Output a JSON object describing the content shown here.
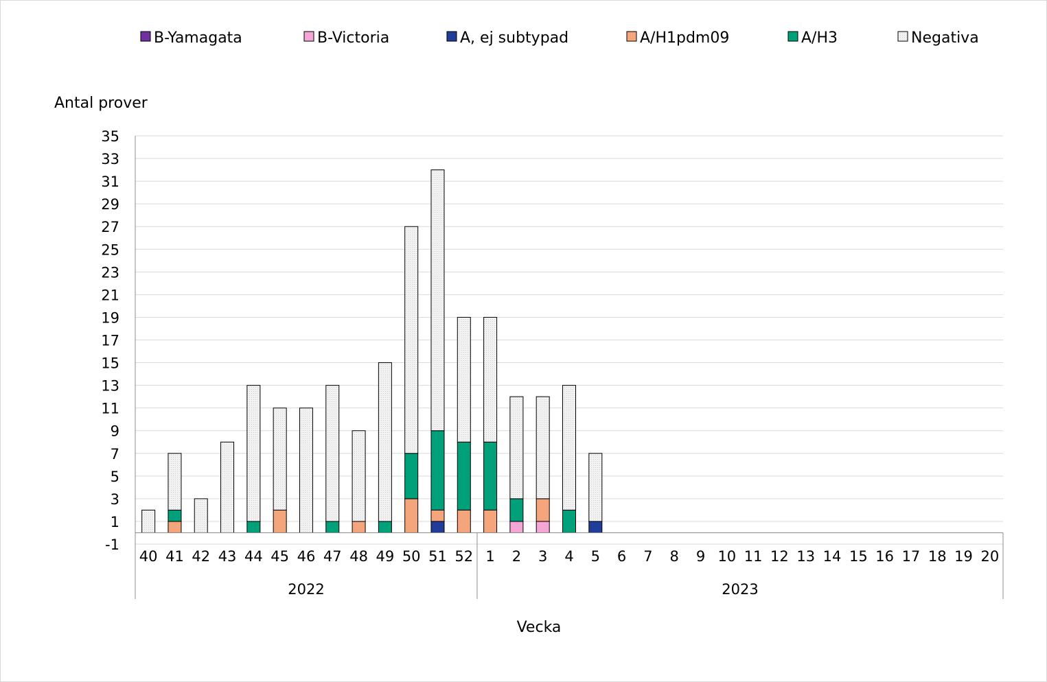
{
  "chart_data": {
    "type": "bar",
    "stacked": true,
    "ylabel": "Antal prover",
    "xlabel": "Vecka",
    "ylim": [
      -1,
      35
    ],
    "yticks": [
      -1,
      1,
      3,
      5,
      7,
      9,
      11,
      13,
      15,
      17,
      19,
      21,
      23,
      25,
      27,
      29,
      31,
      33,
      35
    ],
    "grid": true,
    "legend_position": "top",
    "categories": [
      "40",
      "41",
      "42",
      "43",
      "44",
      "45",
      "46",
      "47",
      "48",
      "49",
      "50",
      "51",
      "52",
      "1",
      "2",
      "3",
      "4",
      "5",
      "6",
      "7",
      "8",
      "9",
      "10",
      "11",
      "12",
      "13",
      "14",
      "15",
      "16",
      "17",
      "18",
      "19",
      "20"
    ],
    "groups": [
      {
        "label": "2022",
        "start": 0,
        "count": 13
      },
      {
        "label": "2023",
        "start": 13,
        "count": 20
      }
    ],
    "series": [
      {
        "name": "B-Yamagata",
        "color": "#7030a0",
        "values": [
          0,
          0,
          0,
          0,
          0,
          0,
          0,
          0,
          0,
          0,
          0,
          0,
          0,
          0,
          0,
          0,
          0,
          0,
          0,
          0,
          0,
          0,
          0,
          0,
          0,
          0,
          0,
          0,
          0,
          0,
          0,
          0,
          0
        ]
      },
      {
        "name": "B-Victoria",
        "color": "#f4a6d7",
        "values": [
          0,
          0,
          0,
          0,
          0,
          0,
          0,
          0,
          0,
          0,
          0,
          0,
          0,
          0,
          1,
          1,
          0,
          0,
          0,
          0,
          0,
          0,
          0,
          0,
          0,
          0,
          0,
          0,
          0,
          0,
          0,
          0,
          0
        ]
      },
      {
        "name": "A, ej subtypad",
        "color": "#1f3d99",
        "values": [
          0,
          0,
          0,
          0,
          0,
          0,
          0,
          0,
          0,
          0,
          0,
          1,
          0,
          0,
          0,
          0,
          0,
          1,
          0,
          0,
          0,
          0,
          0,
          0,
          0,
          0,
          0,
          0,
          0,
          0,
          0,
          0,
          0
        ]
      },
      {
        "name": "A/H1pdm09",
        "color": "#f4a57b",
        "values": [
          0,
          1,
          0,
          0,
          0,
          2,
          0,
          0,
          1,
          0,
          3,
          1,
          2,
          2,
          0,
          2,
          0,
          0,
          0,
          0,
          0,
          0,
          0,
          0,
          0,
          0,
          0,
          0,
          0,
          0,
          0,
          0,
          0
        ]
      },
      {
        "name": "A/H3",
        "color": "#00a07a",
        "values": [
          0,
          1,
          0,
          0,
          1,
          0,
          0,
          1,
          0,
          1,
          4,
          7,
          6,
          6,
          2,
          0,
          2,
          0,
          0,
          0,
          0,
          0,
          0,
          0,
          0,
          0,
          0,
          0,
          0,
          0,
          0,
          0,
          0
        ]
      },
      {
        "name": "Negativa",
        "color": "#eeeeee",
        "values": [
          2,
          5,
          3,
          8,
          12,
          9,
          11,
          12,
          8,
          14,
          20,
          23,
          11,
          11,
          9,
          9,
          11,
          6,
          0,
          0,
          0,
          0,
          0,
          0,
          0,
          0,
          0,
          0,
          0,
          0,
          0,
          0,
          0
        ]
      }
    ]
  }
}
